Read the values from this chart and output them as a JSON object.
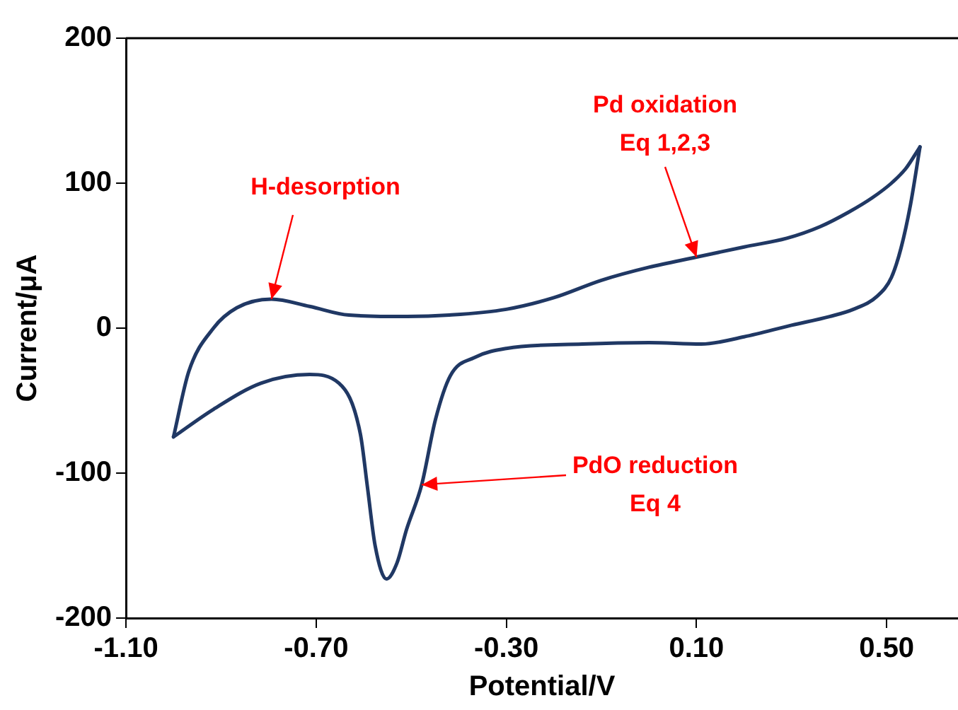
{
  "chart_data": {
    "type": "line",
    "xlabel": "Potential/V",
    "ylabel": "Current/μA",
    "xlim": [
      -1.1,
      0.65
    ],
    "xticks": [
      {
        "value": -1.1,
        "label": "-1.10"
      },
      {
        "value": -0.7,
        "label": "-0.70"
      },
      {
        "value": -0.3,
        "label": "-0.30"
      },
      {
        "value": 0.1,
        "label": "0.10"
      },
      {
        "value": 0.5,
        "label": "0.50"
      }
    ],
    "ylim": [
      -200,
      200
    ],
    "yticks": [
      -200,
      -100,
      0,
      100,
      200
    ],
    "grid": false,
    "legend": false,
    "marker": "none",
    "line_style": "solid",
    "series": [
      {
        "color": "#203864",
        "x": [
          -1.0,
          -0.968,
          -0.916,
          -0.867,
          -0.794,
          -0.714,
          -0.631,
          -0.508,
          -0.42,
          -0.3,
          -0.2,
          -0.1,
          0.0,
          0.1,
          0.2,
          0.29,
          0.36,
          0.42,
          0.47,
          0.51,
          0.54,
          0.57
        ],
        "values": [
          -75,
          -30,
          0,
          14,
          20,
          15,
          9,
          8,
          9,
          13,
          21,
          33,
          42,
          49,
          56,
          62,
          70,
          80,
          90,
          100,
          110,
          125
        ]
      },
      {
        "color": "#203864",
        "x": [
          -1.0,
          -0.916,
          -0.816,
          -0.714,
          -0.652,
          -0.607,
          -0.592,
          -0.576,
          -0.552,
          -0.53,
          -0.51,
          -0.478,
          -0.449,
          -0.418,
          -0.365,
          -0.3,
          -0.14,
          0.0,
          0.11,
          0.2,
          0.3,
          0.38,
          0.43,
          0.48,
          0.51,
          0.53,
          0.55,
          0.57
        ],
        "values": [
          -75,
          -56,
          -38,
          -32,
          -38,
          -73,
          -110,
          -150,
          -173,
          -162,
          -139,
          -108,
          -63,
          -33,
          -20,
          -14,
          -11,
          -10,
          -11,
          -6,
          2,
          8,
          13,
          22,
          35,
          55,
          85,
          125
        ]
      }
    ],
    "annotations": [
      {
        "text": "H-desorption",
        "x": -0.794,
        "y": 20
      },
      {
        "text": "Pd oxidation\nEq 1,2,3",
        "x": 0.1,
        "y": 49
      },
      {
        "text": "PdO reduction\nEq 4",
        "x": -0.478,
        "y": -108
      }
    ]
  }
}
